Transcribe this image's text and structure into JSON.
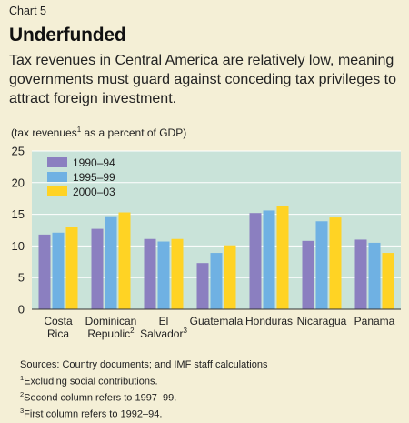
{
  "header": {
    "chart_number": "Chart 5",
    "title": "Underfunded",
    "subtitle": "Tax revenues in Central America are relatively low, meaning governments must guard against conceding tax privileges to attract foreign investment."
  },
  "units": {
    "prefix": "(tax revenues",
    "sup": "1",
    "suffix": " as a percent of GDP)"
  },
  "colors": {
    "background": "#f4efd6",
    "plot_background": "#c9e3d9",
    "series": [
      "#8b7fc0",
      "#6fb1e3",
      "#ffd324"
    ]
  },
  "chart_data": {
    "type": "bar",
    "categories": [
      {
        "lines": [
          "Costa",
          "Rica"
        ],
        "sup": ""
      },
      {
        "lines": [
          "Dominican",
          "Republic"
        ],
        "sup": "2"
      },
      {
        "lines": [
          "El",
          "Salvador"
        ],
        "sup": "3"
      },
      {
        "lines": [
          "Guatemala"
        ],
        "sup": ""
      },
      {
        "lines": [
          "Honduras"
        ],
        "sup": ""
      },
      {
        "lines": [
          "Nicaragua"
        ],
        "sup": ""
      },
      {
        "lines": [
          "Panama"
        ],
        "sup": ""
      }
    ],
    "series": [
      {
        "name": "1990–94",
        "values": [
          11.8,
          12.7,
          11.1,
          7.3,
          15.2,
          10.8,
          11.0
        ]
      },
      {
        "name": "1995–99",
        "values": [
          12.1,
          14.7,
          10.7,
          8.9,
          15.6,
          13.9,
          10.5
        ]
      },
      {
        "name": "2000–03",
        "values": [
          13.0,
          15.3,
          11.1,
          10.1,
          16.3,
          14.5,
          8.9
        ]
      }
    ],
    "ylim": [
      0,
      25
    ],
    "yticks": [
      0,
      5,
      10,
      15,
      20,
      25
    ],
    "grid": true,
    "legend_position": "top-left"
  },
  "footer": {
    "sources": "Sources: Country documents; and IMF staff calculations",
    "notes": [
      {
        "sup": "1",
        "text": "Excluding social contributions."
      },
      {
        "sup": "2",
        "text": "Second column refers to 1997–99."
      },
      {
        "sup": "3",
        "text": "First column refers to 1992–94."
      }
    ]
  }
}
